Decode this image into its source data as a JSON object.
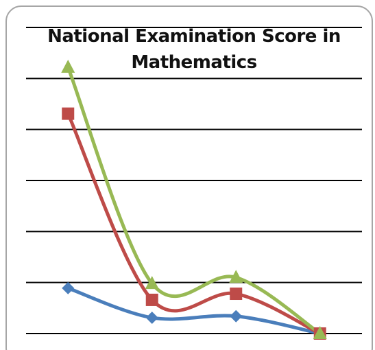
{
  "chart_data": {
    "type": "line",
    "title": "National Examination Score in Mathematics",
    "categories": [
      null,
      null,
      null,
      null
    ],
    "series": [
      {
        "color": "#4a7ebb",
        "marker": "diamond",
        "values": [
          0.89,
          0.31,
          0.34,
          0
        ]
      },
      {
        "color": "#be4b48",
        "marker": "square",
        "values": [
          4.31,
          0.66,
          0.78,
          0
        ]
      },
      {
        "color": "#98b954",
        "marker": "triangle",
        "values": [
          5.22,
          0.98,
          1.1,
          0
        ]
      }
    ],
    "smooth": true,
    "ylim": [
      0,
      6
    ],
    "yticks": [
      0,
      1,
      2,
      3,
      4,
      5,
      6
    ],
    "grid": true
  }
}
